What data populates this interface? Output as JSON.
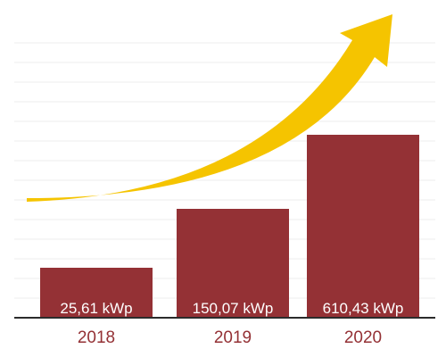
{
  "colors": {
    "bar": "#943135",
    "arrow": "#f5c400",
    "tick_label": "#943135",
    "baseline": "#2b2b2b"
  },
  "chart_data": {
    "type": "bar",
    "categories": [
      "2018",
      "2019",
      "2020"
    ],
    "values": [
      25.61,
      150.07,
      610.43
    ],
    "data_labels": [
      "25,61 kWp",
      "150,07 kWp",
      "610,43 kWp"
    ],
    "unit": "kWp",
    "title": "",
    "xlabel": "",
    "ylabel": "",
    "grid": true,
    "legend": "none",
    "arrow": "rising-curve"
  }
}
